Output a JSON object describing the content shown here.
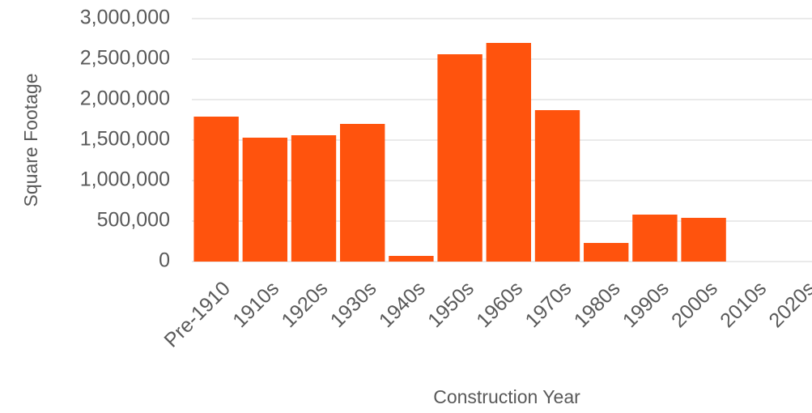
{
  "chart_data": {
    "type": "bar",
    "x_label": "Construction Year",
    "y_label": "Square Footage",
    "categories": [
      "Pre-1910",
      "1910s",
      "1920s",
      "1930s",
      "1940s",
      "1950s",
      "1960s",
      "1970s",
      "1980s",
      "1990s",
      "2000s",
      "2010s",
      "2020s"
    ],
    "values": [
      1790000,
      1530000,
      1560000,
      1700000,
      70000,
      2560000,
      2700000,
      1870000,
      230000,
      580000,
      540000,
      0,
      0
    ],
    "color": "#ff530d",
    "ylim": [
      0,
      3000000
    ],
    "yticks": [
      0,
      {
        "value": 500000,
        "label": "500,000"
      },
      {
        "value": 1000000,
        "label": "1,000,000"
      },
      {
        "value": 1500000,
        "label": "1,500,000"
      },
      {
        "value": 2000000,
        "label": "2,000,000"
      },
      {
        "value": 2500000,
        "label": "2,500,000"
      },
      {
        "value": 3000000,
        "label": "3,000,000"
      }
    ],
    "grid": true
  }
}
